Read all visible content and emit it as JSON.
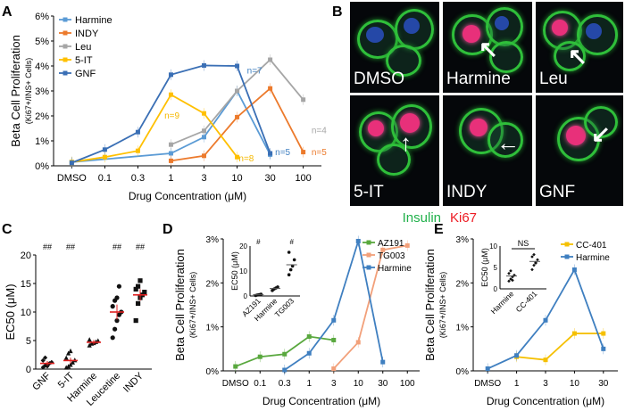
{
  "panel_letters": {
    "a": "A",
    "b": "B",
    "c": "C",
    "d": "D",
    "e": "E"
  },
  "colors": {
    "harmine": "#3f7fc0",
    "indy": "#ec7a2c",
    "leu": "#a6a6a6",
    "fiveit": "#f5b800",
    "gnf": "#3a6fb5",
    "az191": "#59a83e",
    "tg003": "#f2a07a",
    "cc401": "#f5c000",
    "insulin": "#22b14c",
    "ki67": "#ed1c24"
  },
  "panel_b": {
    "images": [
      {
        "label": "DMSO"
      },
      {
        "label": "Harmine"
      },
      {
        "label": "Leu"
      },
      {
        "label": "5-IT"
      },
      {
        "label": "INDY"
      },
      {
        "label": "GNF"
      }
    ],
    "legend_insulin": "Insulin",
    "legend_ki67": "Ki67"
  },
  "chart_data": [
    {
      "panel": "A",
      "type": "line",
      "ylabel": "Beta Cell Proliferation",
      "ylabel2": "(Ki67+/INS+ Cells)",
      "xlabel": "Drug Concentration (μM)",
      "categories": [
        "DMSO",
        "0.1",
        "0.3",
        "1",
        "3",
        "10",
        "30",
        "100"
      ],
      "ylim": [
        0,
        6
      ],
      "yticks": [
        "0%",
        "1%",
        "2%",
        "3%",
        "4%",
        "5%",
        "6%"
      ],
      "series": [
        {
          "name": "Harmine",
          "color": "#5b9bd5",
          "x": [
            0,
            3,
            4,
            5,
            6
          ],
          "values": [
            0.15,
            0.5,
            1.15,
            3.0,
            0.45
          ]
        },
        {
          "name": "INDY",
          "color": "#ec7a2c",
          "x": [
            3,
            4,
            5,
            6,
            7
          ],
          "values": [
            0.2,
            0.4,
            1.95,
            3.1,
            0.55
          ]
        },
        {
          "name": "Leu",
          "color": "#a6a6a6",
          "x": [
            3,
            4,
            5,
            6,
            7
          ],
          "values": [
            0.85,
            1.4,
            3.0,
            4.25,
            2.65
          ]
        },
        {
          "name": "5-IT",
          "color": "#ffc000",
          "x": [
            0,
            1,
            2,
            3,
            4,
            5
          ],
          "values": [
            0.15,
            0.35,
            0.6,
            2.85,
            2.1,
            0.35
          ]
        },
        {
          "name": "GNF",
          "color": "#3a6fb5",
          "x": [
            0,
            1,
            2,
            3,
            4,
            5,
            6
          ],
          "values": [
            0.12,
            0.65,
            1.35,
            3.65,
            4.02,
            4.0,
            0.5
          ]
        }
      ],
      "annotations": [
        {
          "text": "n=7",
          "x": 5.3,
          "y": 3.7,
          "color": "#3f7fc0"
        },
        {
          "text": "n=9",
          "x": 2.8,
          "y": 1.9,
          "color": "#f5b800"
        },
        {
          "text": "n=8",
          "x": 5.05,
          "y": 0.18,
          "color": "#f5b800"
        },
        {
          "text": "n=5",
          "x": 6.15,
          "y": 0.42,
          "color": "#3f7fc0"
        },
        {
          "text": "n=5",
          "x": 7.25,
          "y": 0.42,
          "color": "#ec7a2c"
        },
        {
          "text": "n=4",
          "x": 7.25,
          "y": 1.3,
          "color": "#a6a6a6"
        }
      ]
    },
    {
      "panel": "C",
      "type": "scatter",
      "ylabel": "EC50 (μM)",
      "ylim": [
        0,
        20
      ],
      "yticks": [
        "0",
        "5",
        "10",
        "15",
        "20"
      ],
      "categories": [
        "GNF",
        "5-IT",
        "Harmine",
        "Leucetine",
        "INDY"
      ],
      "markers": [
        "##",
        "##",
        "",
        "##",
        "##"
      ],
      "groups": [
        {
          "mean": 1.0,
          "sem": 0.4,
          "shape": "diamond",
          "points": [
            0.3,
            0.6,
            0.8,
            1.0,
            1.2,
            1.5,
            2.0,
            0.5
          ]
        },
        {
          "mean": 1.5,
          "sem": 0.5,
          "shape": "triangle",
          "points": [
            0.3,
            0.5,
            0.8,
            1.2,
            1.6,
            2.0,
            2.8,
            3.2
          ]
        },
        {
          "mean": 4.7,
          "sem": 0.4,
          "shape": "triangle",
          "points": [
            4.2,
            4.5,
            4.6,
            4.8,
            5.0,
            5.2
          ]
        },
        {
          "mean": 10.0,
          "sem": 1.3,
          "shape": "circle",
          "points": [
            5.5,
            7.0,
            8.5,
            9.5,
            10.0,
            11.0,
            12.0,
            12.5,
            14.5
          ]
        },
        {
          "mean": 13.0,
          "sem": 1.0,
          "shape": "square",
          "points": [
            8.5,
            11.5,
            12.5,
            13.0,
            13.5,
            14.0,
            14.5,
            15.5
          ]
        }
      ]
    },
    {
      "panel": "D",
      "type": "line",
      "ylabel": "Beta Cell Proliferation",
      "ylabel2": "(Ki67+/INS+ Cells)",
      "xlabel": "Drug Concentration (μM)",
      "categories": [
        "DMSO",
        "0.1",
        "0.3",
        "1",
        "3",
        "10",
        "30",
        "100"
      ],
      "ylim": [
        0,
        3
      ],
      "yticks": [
        "0%",
        "1%",
        "2%",
        "3%"
      ],
      "series": [
        {
          "name": "AZ191",
          "color": "#59a83e",
          "x": [
            0,
            1,
            2,
            3,
            4
          ],
          "values": [
            0.1,
            0.32,
            0.38,
            0.78,
            0.7
          ]
        },
        {
          "name": "TG003",
          "color": "#f2a07a",
          "x": [
            4,
            5,
            6,
            7
          ],
          "values": [
            0.05,
            0.65,
            2.75,
            2.85
          ]
        },
        {
          "name": "Harmine",
          "color": "#3f7fc0",
          "x": [
            2,
            3,
            4,
            5,
            6
          ],
          "values": [
            0.02,
            0.4,
            1.15,
            2.95,
            0.2
          ]
        }
      ],
      "inset": {
        "ylabel": "EC50 (μM)",
        "ylim": [
          0,
          20
        ],
        "yticks": [
          "0",
          "10",
          "20"
        ],
        "categories": [
          "AZ191",
          "Harmine",
          "TG003"
        ],
        "markers": [
          "#",
          "",
          "#"
        ],
        "groups": [
          {
            "mean": 0.5,
            "points": [
              0.2,
              0.4,
              0.5,
              0.7
            ]
          },
          {
            "mean": 3.0,
            "points": [
              2.2,
              2.8,
              3.2,
              3.6
            ]
          },
          {
            "mean": 12.5,
            "points": [
              8.5,
              10.5,
              12.0,
              14.5,
              17.5
            ]
          }
        ]
      }
    },
    {
      "panel": "E",
      "type": "line",
      "ylabel": "Beta Cell Proliferation",
      "ylabel2": "(Ki67+/INS+ Cells)",
      "xlabel": "Drug Concentration (μM)",
      "categories": [
        "DMSO",
        "1",
        "3",
        "10",
        "30"
      ],
      "ylim": [
        0,
        3
      ],
      "yticks": [
        "0%",
        "1%",
        "2%",
        "3%"
      ],
      "series": [
        {
          "name": "CC-401",
          "color": "#f5c000",
          "x": [
            1,
            2,
            3,
            4
          ],
          "values": [
            0.32,
            0.25,
            0.85,
            0.85
          ]
        },
        {
          "name": "Harmine",
          "color": "#3f7fc0",
          "x": [
            0,
            1,
            2,
            3,
            4
          ],
          "values": [
            0.05,
            0.35,
            1.15,
            2.3,
            0.5
          ]
        }
      ],
      "inset": {
        "ylabel": "EC50 (μM)",
        "ylim": [
          0,
          10
        ],
        "yticks": [
          "0",
          "5",
          "10"
        ],
        "categories": [
          "Harmine",
          "CC-401"
        ],
        "sig": "NS",
        "groups": [
          {
            "mean": 3.0,
            "points": [
              1.8,
              2.3,
              2.8,
              3.2,
              3.6,
              4.2,
              2.0
            ]
          },
          {
            "mean": 6.4,
            "points": [
              4.5,
              5.5,
              6.2,
              6.8,
              7.5,
              8.0,
              6.0
            ]
          }
        ]
      }
    }
  ]
}
